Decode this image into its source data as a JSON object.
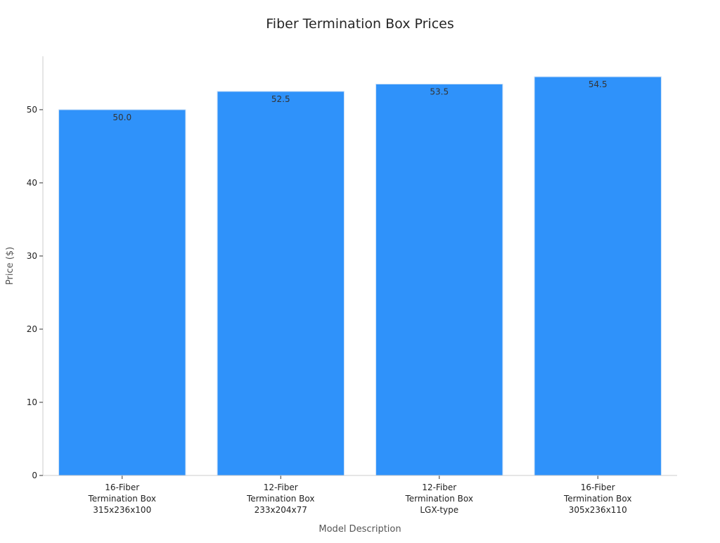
{
  "chart_data": {
    "type": "bar",
    "title": "Fiber Termination Box Prices",
    "xlabel": "Model Description",
    "ylabel": "Price ($)",
    "categories": [
      [
        "16-Fiber",
        "Termination Box",
        "315x236x100"
      ],
      [
        "12-Fiber",
        "Termination Box",
        "233x204x77"
      ],
      [
        "12-Fiber",
        "Termination Box",
        "LGX-type"
      ],
      [
        "16-Fiber",
        "Termination Box",
        "305x236x110"
      ]
    ],
    "values": [
      50.0,
      52.5,
      53.5,
      54.5
    ],
    "data_labels": [
      "50.0",
      "52.5",
      "53.5",
      "54.5"
    ],
    "yticks": [
      0,
      10,
      20,
      30,
      40,
      50
    ],
    "ylim": [
      0,
      57.3
    ],
    "grid": false,
    "colors": {
      "bar": "#2f92fa",
      "bar_edge": "#c9dff7",
      "axis": "#cccccc",
      "text": "#333333",
      "label": "#555555"
    }
  }
}
